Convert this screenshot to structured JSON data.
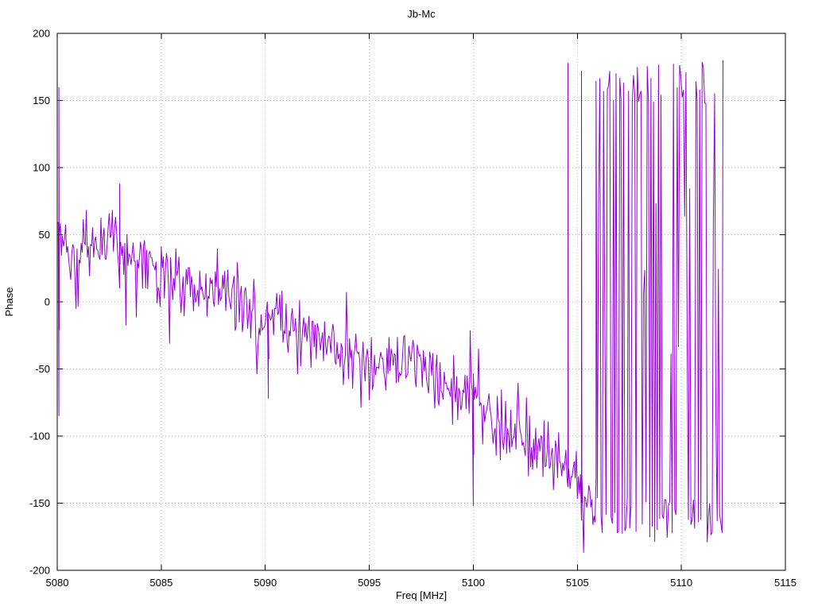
{
  "chart_data": {
    "type": "line",
    "title": "Jb-Mc",
    "xlabel": "Freq [MHz]",
    "ylabel": "Phase",
    "xlim": [
      5080,
      5115
    ],
    "ylim": [
      -200,
      200
    ],
    "xticks": [
      5080,
      5085,
      5090,
      5095,
      5100,
      5105,
      5110,
      5115
    ],
    "yticks": [
      -200,
      -150,
      -100,
      -50,
      0,
      50,
      100,
      150,
      200
    ],
    "grid": true,
    "grid_style": "dotted",
    "legend": "none",
    "line_color": "#9400D3",
    "background": "#FFFFFF",
    "description": "Noisy interferometric phase vs frequency; phase drifts from about +45 deg at 5080 MHz down to about -150 deg near 5105 MHz, then wraps rapidly between -180 and +180 deg from about 5106 to 5112 MHz where data ends",
    "series": [
      {
        "name": "Jb-Mc phase",
        "x_start": 5080,
        "x_step": 0.05,
        "trend": [
          [
            5080,
            45
          ],
          [
            5080.6,
            30
          ],
          [
            5081.2,
            34
          ],
          [
            5082,
            40
          ],
          [
            5082.6,
            48
          ],
          [
            5083.2,
            44
          ],
          [
            5084,
            28
          ],
          [
            5085,
            22
          ],
          [
            5086,
            12
          ],
          [
            5087,
            16
          ],
          [
            5088,
            6
          ],
          [
            5089,
            0
          ],
          [
            5090,
            -12
          ],
          [
            5091,
            -20
          ],
          [
            5092,
            -24
          ],
          [
            5093,
            -32
          ],
          [
            5094,
            -40
          ],
          [
            5095,
            -46
          ],
          [
            5096,
            -52
          ],
          [
            5097,
            -42
          ],
          [
            5098,
            -58
          ],
          [
            5099,
            -66
          ],
          [
            5100,
            -76
          ],
          [
            5101,
            -88
          ],
          [
            5102,
            -100
          ],
          [
            5103,
            -110
          ],
          [
            5104,
            -120
          ],
          [
            5105,
            -132
          ],
          [
            5105.9,
            -152
          ]
        ],
        "noise_amplitude": 24,
        "spike_events": [
          {
            "x": 5080.08,
            "low": -85,
            "high": 160
          },
          {
            "x": 5083.0,
            "low": 10,
            "high": 88
          },
          {
            "x": 5090.15,
            "low": -72,
            "high": -8
          },
          {
            "x": 5100.0,
            "low": -152,
            "high": -62
          },
          {
            "x": 5104.55,
            "low": -138,
            "high": 178
          },
          {
            "x": 5105.2,
            "low": -163,
            "high": 172
          }
        ],
        "wrap_region": {
          "start": 5105.9,
          "end": 5112,
          "step": 0.06,
          "low_range": [
            -180,
            -146
          ],
          "high_range": [
            146,
            181
          ],
          "mid_probability": 0.12
        },
        "end_point": [
          5112,
          180
        ],
        "seed": 20240517
      }
    ]
  }
}
